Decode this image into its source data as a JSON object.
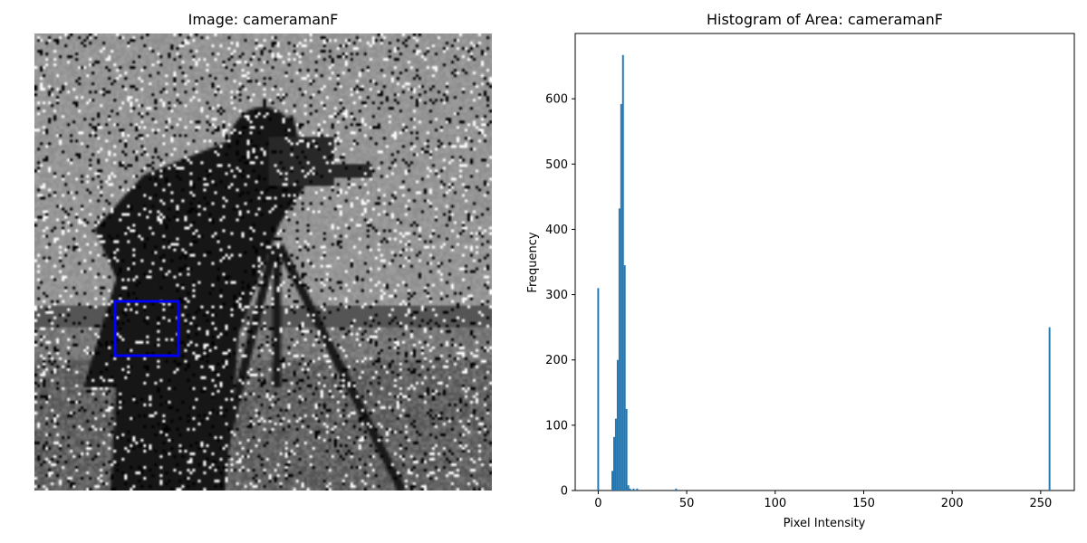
{
  "image_panel": {
    "title": "Image: cameramanF",
    "selection_color": "#0000ff"
  },
  "chart_data": {
    "type": "bar",
    "title": "Histogram of Area: cameramanF",
    "xlabel": "Pixel Intensity",
    "ylabel": "Frequency",
    "xlim": [
      -13,
      269
    ],
    "ylim": [
      0,
      700
    ],
    "xticks": [
      0,
      50,
      100,
      150,
      200,
      250
    ],
    "yticks": [
      0,
      100,
      200,
      300,
      400,
      500,
      600
    ],
    "bar_color": "#1f77b4",
    "bins": [
      0,
      8,
      9,
      10,
      11,
      12,
      13,
      14,
      15,
      16,
      17,
      18,
      20,
      22,
      44,
      255
    ],
    "values": [
      310,
      30,
      82,
      110,
      200,
      432,
      592,
      667,
      345,
      125,
      8,
      3,
      3,
      3,
      3,
      250
    ],
    "grid": false,
    "legend": false
  }
}
